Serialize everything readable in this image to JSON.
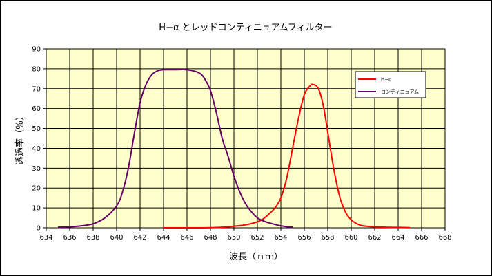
{
  "chart_data": {
    "type": "line",
    "title": "H−α とレッドコンティニュアムフィルター",
    "xlabel": "波長（ｎｍ）",
    "ylabel": "透過率（％）",
    "xlim": [
      634,
      668
    ],
    "ylim": [
      0,
      90
    ],
    "xticks": [
      634,
      636,
      638,
      640,
      642,
      644,
      646,
      648,
      650,
      652,
      654,
      656,
      658,
      660,
      662,
      664,
      666,
      668
    ],
    "yticks": [
      0,
      10,
      20,
      30,
      40,
      50,
      60,
      70,
      80,
      90
    ],
    "grid": true,
    "legend": "top-right",
    "plot_background": "#ffffcc",
    "series": [
      {
        "name": "H−α",
        "color": "#ff0000",
        "x": [
          644,
          646,
          648,
          649,
          650,
          651,
          652,
          652.5,
          653,
          653.5,
          654,
          654.5,
          655,
          655.5,
          656,
          656.5,
          656.8,
          657.2,
          657.6,
          658,
          658.5,
          659,
          659.5,
          660,
          660.5,
          661,
          662,
          663,
          664,
          665
        ],
        "y": [
          0,
          0,
          0.1,
          0.3,
          0.8,
          1.5,
          3,
          4.5,
          7,
          10,
          15,
          25,
          40,
          55,
          67,
          71.5,
          72,
          70,
          62,
          48,
          30,
          16,
          8,
          4,
          2,
          1,
          0.5,
          0.3,
          0.2,
          0.1
        ]
      },
      {
        "name": "コンティニュアム",
        "color": "#660066",
        "x": [
          635,
          636,
          637,
          638,
          639,
          640,
          640.5,
          641,
          641.5,
          642,
          642.5,
          643,
          643.5,
          644,
          645,
          646,
          647,
          647.5,
          648,
          648.5,
          649,
          649.5,
          650,
          650.5,
          651,
          651.5,
          652,
          652.5,
          653,
          654,
          655
        ],
        "y": [
          0.3,
          0.5,
          1,
          2,
          5,
          11,
          18,
          30,
          47,
          63,
          72,
          77,
          79,
          79.5,
          79.5,
          79.5,
          78,
          75,
          69,
          58,
          45,
          36,
          26,
          18,
          12,
          8,
          5,
          3.5,
          2.5,
          1,
          0.3
        ]
      }
    ]
  }
}
